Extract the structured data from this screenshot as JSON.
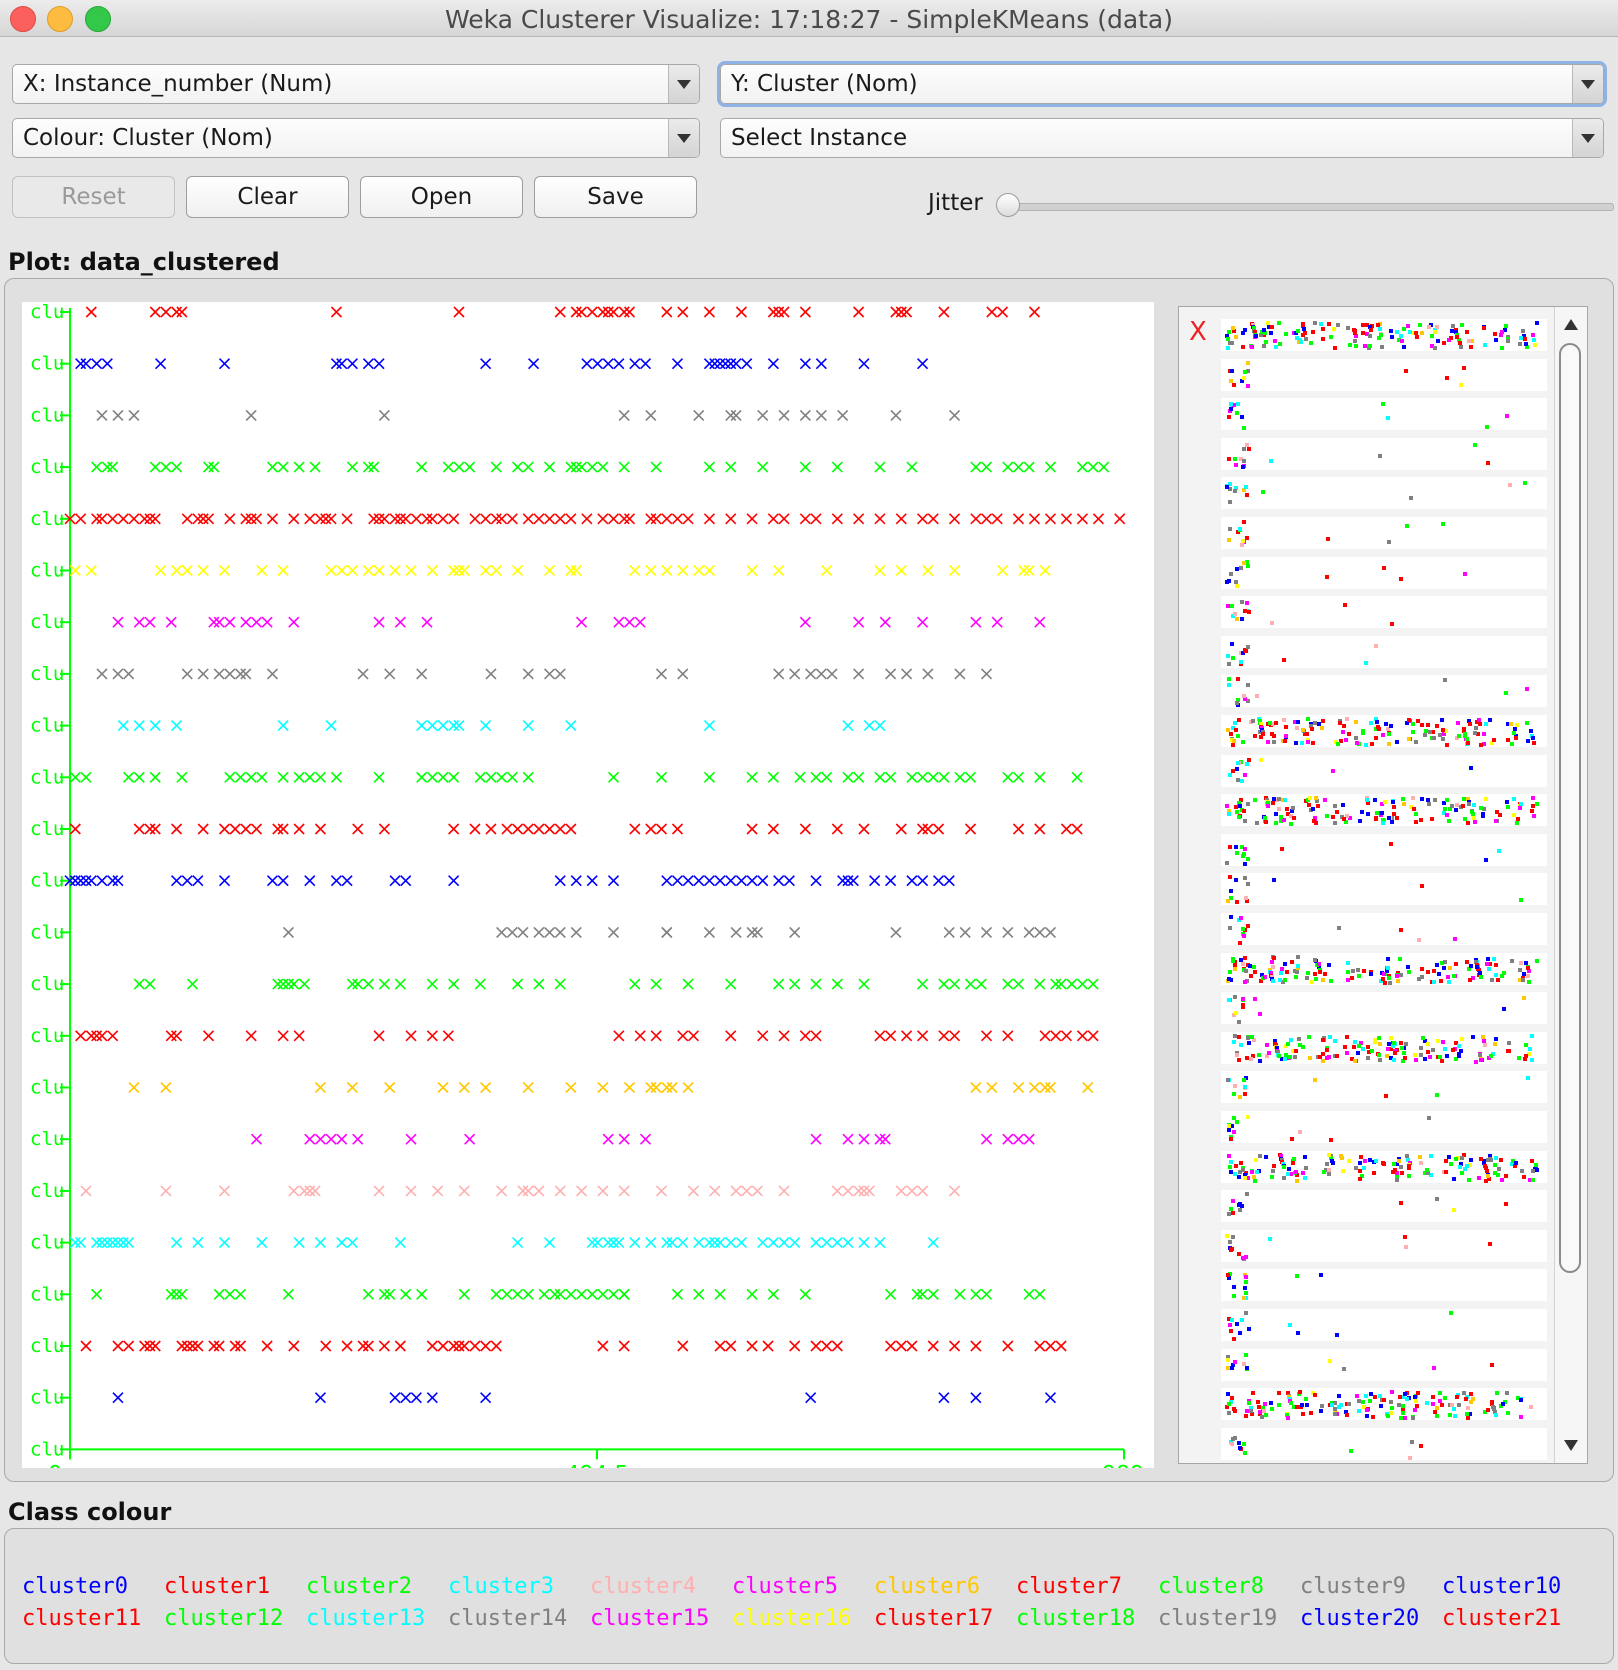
{
  "window": {
    "title": "Weka Clusterer Visualize: 17:18:27 - SimpleKMeans (data)"
  },
  "controls": {
    "x_axis": "X: Instance_number (Num)",
    "y_axis": "Y: Cluster (Nom)",
    "colour": "Colour: Cluster (Nom)",
    "select_instance": "Select Instance",
    "buttons": {
      "reset": "Reset",
      "clear": "Clear",
      "open": "Open",
      "save": "Save"
    },
    "jitter_label": "Jitter",
    "jitter_level": 0
  },
  "plot": {
    "label": "Plot: data_clustered",
    "marker": "x"
  },
  "legend": {
    "label": "Class colour",
    "items": [
      {
        "name": "cluster0",
        "color": "#0000ff"
      },
      {
        "name": "cluster1",
        "color": "#ff0000"
      },
      {
        "name": "cluster2",
        "color": "#00ff00"
      },
      {
        "name": "cluster3",
        "color": "#00ffff"
      },
      {
        "name": "cluster4",
        "color": "#ffafaf"
      },
      {
        "name": "cluster5",
        "color": "#ff00ff"
      },
      {
        "name": "cluster6",
        "color": "#ffc800"
      },
      {
        "name": "cluster7",
        "color": "#ff0000"
      },
      {
        "name": "cluster8",
        "color": "#00ff00"
      },
      {
        "name": "cluster9",
        "color": "#808080"
      },
      {
        "name": "cluster10",
        "color": "#0000ff"
      },
      {
        "name": "cluster11",
        "color": "#ff0000"
      },
      {
        "name": "cluster12",
        "color": "#00ff00"
      },
      {
        "name": "cluster13",
        "color": "#00ffff"
      },
      {
        "name": "cluster14",
        "color": "#808080"
      },
      {
        "name": "cluster15",
        "color": "#ff00ff"
      },
      {
        "name": "cluster16",
        "color": "#ffff00"
      },
      {
        "name": "cluster17",
        "color": "#ff0000"
      },
      {
        "name": "cluster18",
        "color": "#00ff00"
      },
      {
        "name": "cluster19",
        "color": "#808080"
      },
      {
        "name": "cluster20",
        "color": "#0000ff"
      },
      {
        "name": "cluster21",
        "color": "#ff0000"
      }
    ]
  },
  "chart_data": {
    "type": "scatter",
    "x_label": "Instance_number",
    "y_label": "Cluster",
    "x_ticks": [
      "0",
      "494.5",
      "989"
    ],
    "xlim": [
      0,
      989
    ],
    "y_tick_text": "clu",
    "axis_color": "#00ff00",
    "series": [
      {
        "cluster": "cluster21",
        "color": "#ff0000",
        "x": [
          20,
          80,
          90,
          100,
          105,
          250,
          365,
          460,
          475,
          480,
          490,
          500,
          505,
          510,
          520,
          525,
          560,
          575,
          600,
          630,
          660,
          665,
          670,
          690,
          740,
          775,
          780,
          785,
          820,
          865,
          875,
          905
        ]
      },
      {
        "cluster": "cluster20",
        "color": "#0000ff",
        "x": [
          10,
          15,
          25,
          35,
          85,
          145,
          250,
          255,
          265,
          280,
          290,
          390,
          435,
          485,
          495,
          505,
          515,
          530,
          540,
          570,
          600,
          605,
          610,
          615,
          620,
          625,
          635,
          660,
          690,
          705,
          745,
          800
        ]
      },
      {
        "cluster": "cluster19",
        "color": "#808080",
        "x": [
          30,
          45,
          60,
          170,
          295,
          520,
          545,
          590,
          620,
          625,
          650,
          670,
          690,
          705,
          725,
          775,
          830
        ]
      },
      {
        "cluster": "cluster18",
        "color": "#00ff00",
        "x": [
          25,
          35,
          40,
          80,
          90,
          100,
          130,
          135,
          190,
          200,
          215,
          230,
          265,
          280,
          285,
          330,
          355,
          365,
          375,
          400,
          420,
          430,
          450,
          470,
          475,
          480,
          490,
          500,
          520,
          550,
          600,
          620,
          650,
          690,
          720,
          760,
          790,
          850,
          860,
          880,
          890,
          900,
          920,
          950,
          960,
          970
        ]
      },
      {
        "cluster": "cluster17",
        "color": "#ff0000",
        "x": [
          0,
          10,
          25,
          30,
          40,
          50,
          60,
          70,
          75,
          80,
          110,
          120,
          125,
          130,
          150,
          165,
          170,
          175,
          190,
          210,
          225,
          235,
          240,
          245,
          260,
          285,
          290,
          295,
          305,
          310,
          315,
          325,
          335,
          340,
          350,
          360,
          380,
          390,
          400,
          405,
          415,
          430,
          440,
          450,
          460,
          470,
          485,
          500,
          510,
          520,
          525,
          545,
          550,
          560,
          570,
          580,
          600,
          620,
          640,
          660,
          670,
          690,
          700,
          720,
          740,
          760,
          780,
          800,
          810,
          830,
          850,
          860,
          870,
          890,
          905,
          920,
          935,
          950,
          965,
          985
        ]
      },
      {
        "cluster": "cluster16",
        "color": "#ffff00",
        "x": [
          5,
          20,
          85,
          100,
          110,
          125,
          145,
          180,
          200,
          245,
          255,
          265,
          280,
          290,
          305,
          320,
          340,
          360,
          365,
          370,
          390,
          400,
          420,
          450,
          470,
          475,
          530,
          545,
          560,
          575,
          590,
          600,
          640,
          665,
          710,
          760,
          780,
          805,
          830,
          875,
          895,
          900,
          915
        ]
      },
      {
        "cluster": "cluster15",
        "color": "#ff00ff",
        "x": [
          45,
          65,
          75,
          95,
          135,
          140,
          150,
          165,
          175,
          185,
          210,
          290,
          310,
          335,
          480,
          515,
          525,
          535,
          690,
          740,
          765,
          800,
          850,
          870,
          910
        ]
      },
      {
        "cluster": "cluster14",
        "color": "#808080",
        "x": [
          30,
          45,
          55,
          110,
          125,
          140,
          150,
          160,
          165,
          190,
          275,
          300,
          330,
          395,
          430,
          450,
          460,
          555,
          575,
          665,
          680,
          695,
          705,
          715,
          740,
          770,
          785,
          805,
          835,
          860
        ]
      },
      {
        "cluster": "cluster13",
        "color": "#00ffff",
        "x": [
          50,
          65,
          80,
          100,
          200,
          245,
          330,
          340,
          350,
          360,
          365,
          390,
          430,
          470,
          600,
          730,
          750,
          760
        ]
      },
      {
        "cluster": "cluster12",
        "color": "#00ff00",
        "x": [
          5,
          15,
          55,
          65,
          80,
          105,
          150,
          160,
          170,
          180,
          200,
          215,
          225,
          235,
          250,
          290,
          330,
          340,
          350,
          360,
          385,
          395,
          405,
          415,
          430,
          510,
          555,
          600,
          640,
          660,
          685,
          700,
          710,
          730,
          740,
          760,
          770,
          790,
          800,
          810,
          820,
          835,
          845,
          880,
          890,
          910,
          945
        ]
      },
      {
        "cluster": "cluster11",
        "color": "#ff0000",
        "x": [
          5,
          65,
          75,
          80,
          100,
          125,
          145,
          155,
          165,
          175,
          195,
          200,
          215,
          235,
          270,
          295,
          360,
          380,
          395,
          410,
          420,
          430,
          440,
          450,
          460,
          470,
          530,
          545,
          555,
          570,
          640,
          660,
          690,
          720,
          745,
          780,
          800,
          805,
          815,
          845,
          890,
          910,
          935,
          945
        ]
      },
      {
        "cluster": "cluster10",
        "color": "#0000ff",
        "x": [
          0,
          5,
          10,
          15,
          20,
          30,
          40,
          45,
          100,
          110,
          120,
          145,
          190,
          200,
          225,
          250,
          260,
          305,
          315,
          360,
          460,
          475,
          490,
          510,
          560,
          570,
          580,
          590,
          600,
          610,
          620,
          630,
          640,
          650,
          665,
          675,
          700,
          725,
          730,
          735,
          755,
          770,
          790,
          800,
          815,
          825
        ]
      },
      {
        "cluster": "cluster9",
        "color": "#808080",
        "x": [
          205,
          405,
          415,
          425,
          440,
          450,
          460,
          475,
          510,
          560,
          560,
          600,
          625,
          640,
          645,
          680,
          775,
          825,
          840,
          860,
          880,
          900,
          910,
          920
        ]
      },
      {
        "cluster": "cluster8",
        "color": "#00ff00",
        "x": [
          65,
          75,
          115,
          205,
          195,
          200,
          210,
          220,
          265,
          270,
          280,
          295,
          310,
          340,
          360,
          385,
          420,
          440,
          460,
          530,
          550,
          580,
          620,
          665,
          680,
          700,
          720,
          745,
          800,
          820,
          830,
          845,
          855,
          880,
          890,
          910,
          925,
          930,
          940,
          950,
          960
        ]
      },
      {
        "cluster": "cluster7",
        "color": "#ff0000",
        "x": [
          10,
          20,
          25,
          30,
          40,
          95,
          100,
          130,
          170,
          200,
          215,
          290,
          320,
          340,
          355,
          515,
          535,
          550,
          575,
          585,
          620,
          650,
          670,
          690,
          700,
          760,
          770,
          785,
          800,
          820,
          830,
          860,
          880,
          915,
          925,
          935,
          950,
          960
        ]
      },
      {
        "cluster": "cluster6",
        "color": "#ffc800",
        "x": [
          60,
          90,
          235,
          265,
          300,
          350,
          370,
          390,
          430,
          470,
          500,
          525,
          545,
          550,
          560,
          565,
          580,
          850,
          865,
          890,
          905,
          915,
          920,
          955
        ]
      },
      {
        "cluster": "cluster5",
        "color": "#ff00ff",
        "x": [
          175,
          225,
          235,
          245,
          255,
          270,
          320,
          375,
          505,
          520,
          540,
          700,
          730,
          745,
          760,
          765,
          860,
          880,
          890,
          900
        ]
      },
      {
        "cluster": "cluster4",
        "color": "#ffafaf",
        "x": [
          15,
          90,
          145,
          210,
          220,
          225,
          230,
          290,
          320,
          345,
          370,
          405,
          425,
          430,
          440,
          460,
          480,
          500,
          520,
          555,
          585,
          605,
          625,
          635,
          645,
          670,
          720,
          730,
          740,
          745,
          750,
          780,
          790,
          800,
          830
        ]
      },
      {
        "cluster": "cluster3",
        "color": "#00ffff",
        "x": [
          5,
          10,
          25,
          30,
          35,
          40,
          45,
          50,
          55,
          100,
          120,
          145,
          180,
          215,
          235,
          255,
          265,
          310,
          420,
          450,
          490,
          495,
          505,
          510,
          515,
          530,
          545,
          560,
          565,
          575,
          590,
          600,
          605,
          610,
          620,
          630,
          650,
          660,
          670,
          680,
          700,
          710,
          720,
          730,
          745,
          760,
          810
        ]
      },
      {
        "cluster": "cluster2",
        "color": "#00ff00",
        "x": [
          25,
          95,
          100,
          105,
          140,
          150,
          160,
          205,
          280,
          295,
          300,
          315,
          330,
          370,
          400,
          410,
          420,
          430,
          445,
          455,
          460,
          470,
          480,
          490,
          500,
          510,
          520,
          520,
          570,
          590,
          610,
          640,
          660,
          690,
          770,
          795,
          800,
          810,
          835,
          850,
          860,
          900,
          910
        ]
      },
      {
        "cluster": "cluster1",
        "color": "#ff0000",
        "x": [
          15,
          45,
          55,
          70,
          75,
          80,
          105,
          110,
          115,
          120,
          135,
          140,
          155,
          160,
          185,
          210,
          240,
          260,
          275,
          280,
          295,
          310,
          340,
          350,
          360,
          365,
          370,
          380,
          390,
          400,
          500,
          520,
          575,
          610,
          620,
          640,
          655,
          680,
          700,
          710,
          720,
          770,
          780,
          790,
          810,
          830,
          850,
          880,
          910,
          920,
          930
        ]
      },
      {
        "cluster": "cluster0",
        "color": "#0000ff",
        "x": [
          45,
          235,
          305,
          315,
          325,
          340,
          390,
          695,
          820,
          850,
          920
        ]
      }
    ]
  },
  "side_panel": {
    "matrix_x_label": "X",
    "strip_count": 29
  }
}
